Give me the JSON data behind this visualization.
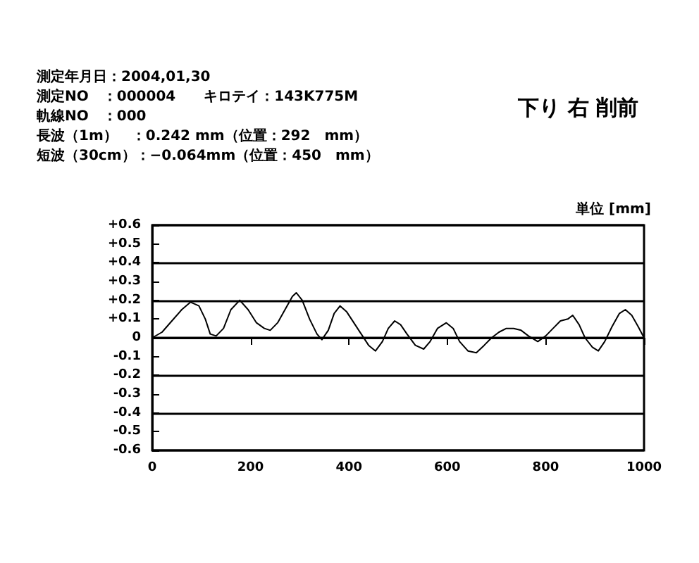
{
  "chart_data": {
    "type": "line",
    "title": "下り 右 削前",
    "ylabel": "単位 [mm]",
    "annotations": [
      "測定年月日：2004,01,30",
      "測定NO　：000004　　キロテイ：143K775M",
      "軌線NO　：000",
      "長波（1m）　：0.242 mm（位置：292　mm）",
      "短波（30cm）：−0.064mm（位置：450　mm）"
    ],
    "x": [
      0,
      20,
      40,
      60,
      78,
      95,
      108,
      118,
      130,
      145,
      160,
      178,
      195,
      212,
      228,
      240,
      255,
      270,
      285,
      293,
      305,
      320,
      335,
      345,
      358,
      370,
      382,
      395,
      410,
      425,
      440,
      454,
      468,
      480,
      493,
      505,
      518,
      535,
      552,
      565,
      580,
      598,
      612,
      625,
      642,
      659,
      675,
      690,
      705,
      720,
      735,
      750,
      765,
      784,
      800,
      815,
      830,
      845,
      855,
      868,
      880,
      895,
      907,
      920,
      935,
      950,
      962,
      975,
      988,
      1000
    ],
    "series": [
      {
        "color": "#000000",
        "values": [
          0,
          0.03,
          0.09,
          0.15,
          0.19,
          0.17,
          0.1,
          0.02,
          0.01,
          0.05,
          0.15,
          0.2,
          0.15,
          0.08,
          0.05,
          0.04,
          0.08,
          0.15,
          0.22,
          0.24,
          0.2,
          0.1,
          0.02,
          -0.01,
          0.04,
          0.13,
          0.17,
          0.14,
          0.08,
          0.02,
          -0.04,
          -0.07,
          -0.02,
          0.05,
          0.09,
          0.07,
          0.02,
          -0.04,
          -0.06,
          -0.02,
          0.05,
          0.08,
          0.05,
          -0.02,
          -0.07,
          -0.08,
          -0.04,
          0,
          0.03,
          0.05,
          0.05,
          0.04,
          0.01,
          -0.02,
          0.01,
          0.05,
          0.09,
          0.1,
          0.12,
          0.07,
          0,
          -0.05,
          -0.07,
          -0.02,
          0.06,
          0.13,
          0.15,
          0.12,
          0.06,
          0
        ]
      }
    ],
    "xlim": [
      0,
      1000
    ],
    "xticks": [
      0,
      200,
      400,
      600,
      800,
      1000
    ],
    "ylim": [
      -0.6,
      0.6
    ],
    "yticks": [
      {
        "value": 0.6,
        "label": "+0.6"
      },
      {
        "value": 0.5,
        "label": "+0.5"
      },
      {
        "value": 0.4,
        "label": "+0.4"
      },
      {
        "value": 0.3,
        "label": "+0.3"
      },
      {
        "value": 0.2,
        "label": "+0.2"
      },
      {
        "value": 0.1,
        "label": "+0.1"
      },
      0,
      -0.1,
      -0.2,
      -0.3,
      -0.4,
      -0.5,
      -0.6
    ],
    "grid": "y",
    "marker": "none",
    "line_style": "solid"
  }
}
